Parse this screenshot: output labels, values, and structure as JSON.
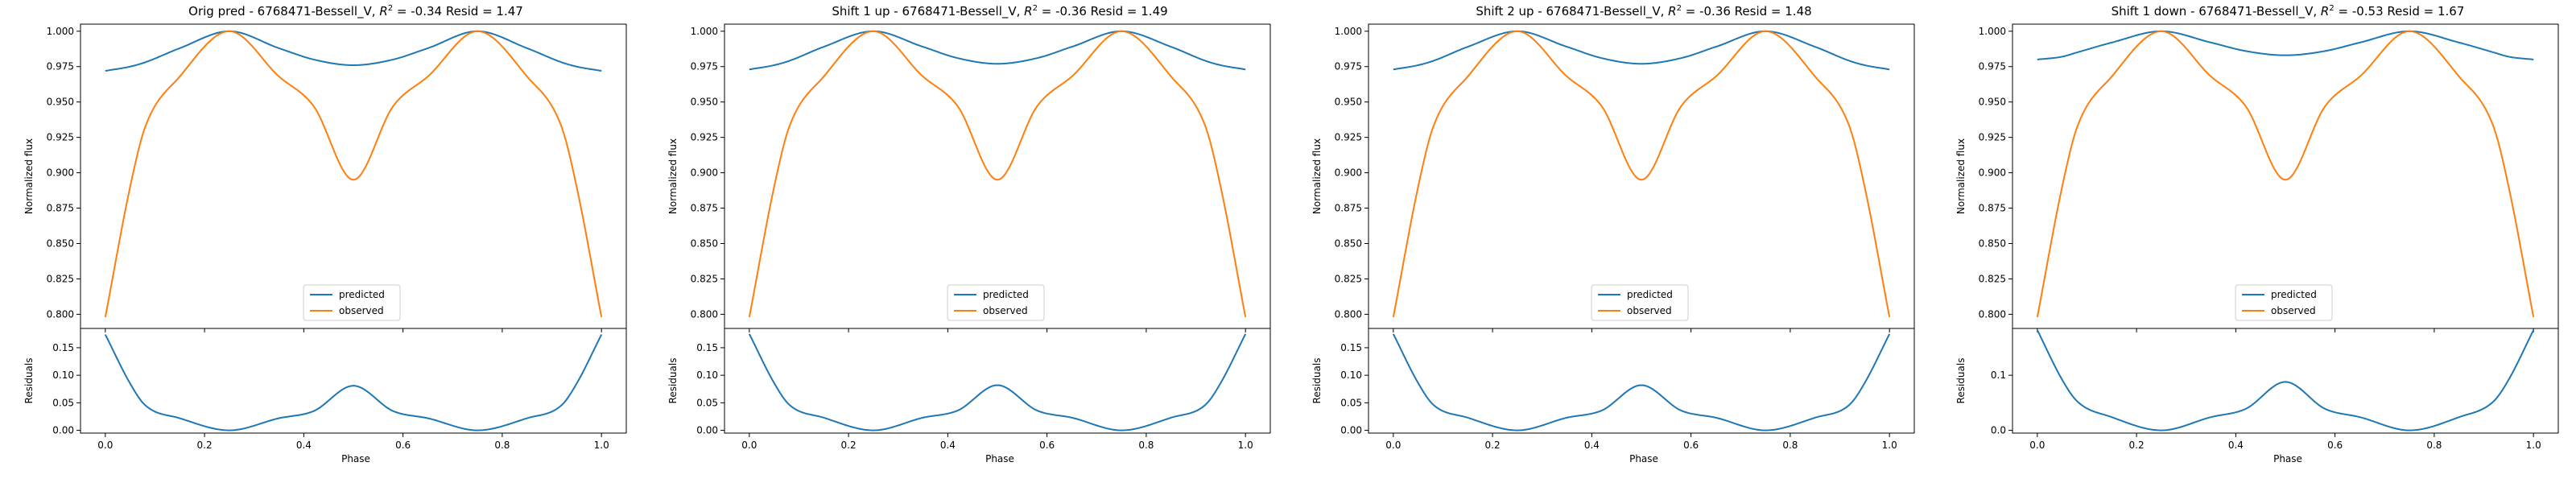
{
  "figure": {
    "panels": [
      {
        "title": "Orig pred - 6768471-Bessell_V, $R^2$ = -0.34 Resid = 1.47",
        "title_prefix": "Orig pred - 6768471-Bessell_V, ",
        "title_r2_label": "R",
        "title_r2_sup": "2",
        "title_r2_value": " = -0.34 Resid = 1.47",
        "ylabel_top": "Normalized flux",
        "ylabel_bottom": "Residuals",
        "xlabel": "Phase",
        "legend": [
          "predicted",
          "observed"
        ]
      },
      {
        "title": "Shift 1 up - 6768471-Bessell_V, $R^2$ = -0.36 Resid = 1.49",
        "title_prefix": "Shift 1 up - 6768471-Bessell_V, ",
        "title_r2_label": "R",
        "title_r2_sup": "2",
        "title_r2_value": " = -0.36 Resid = 1.49",
        "ylabel_top": "Normalized flux",
        "ylabel_bottom": "Residuals",
        "xlabel": "Phase",
        "legend": [
          "predicted",
          "observed"
        ]
      },
      {
        "title": "Shift 2 up - 6768471-Bessell_V, $R^2$ = -0.36 Resid = 1.48",
        "title_prefix": "Shift 2 up - 6768471-Bessell_V, ",
        "title_r2_label": "R",
        "title_r2_sup": "2",
        "title_r2_value": " = -0.36 Resid = 1.48",
        "ylabel_top": "Normalized flux",
        "ylabel_bottom": "Residuals",
        "xlabel": "Phase",
        "legend": [
          "predicted",
          "observed"
        ]
      },
      {
        "title": "Shift 1 down - 6768471-Bessell_V, $R^2$ = -0.53 Resid = 1.67",
        "title_prefix": "Shift 1 down - 6768471-Bessell_V, ",
        "title_r2_label": "R",
        "title_r2_sup": "2",
        "title_r2_value": " = -0.53 Resid = 1.67",
        "ylabel_top": "Normalized flux",
        "ylabel_bottom": "Residuals",
        "xlabel": "Phase",
        "legend": [
          "predicted",
          "observed"
        ]
      }
    ]
  },
  "colors": {
    "predicted": "#1f77b4",
    "observed": "#ff7f0e",
    "axes": "#000000"
  },
  "chart_data": [
    {
      "type": "line",
      "title": "Orig pred - 6768471-Bessell_V, $R^2$ = -0.34 Resid = 1.47",
      "xlabel": "Phase",
      "ylabel": "Normalized flux",
      "xlim": [
        -0.05,
        1.05
      ],
      "ylim": [
        0.79,
        1.005
      ],
      "xticks": [
        0.0,
        0.2,
        0.4,
        0.6,
        0.8,
        1.0
      ],
      "xtick_labels": [
        "0.0",
        "0.2",
        "0.4",
        "0.6",
        "0.8",
        "1.0"
      ],
      "yticks": [
        0.8,
        0.825,
        0.85,
        0.875,
        0.9,
        0.925,
        0.95,
        0.975,
        1.0
      ],
      "ytick_labels": [
        "0.800",
        "0.825",
        "0.850",
        "0.875",
        "0.900",
        "0.925",
        "0.950",
        "0.975",
        "1.000"
      ],
      "legend_position": "lower center",
      "grid": false,
      "x": [
        0.0,
        0.05,
        0.08,
        0.15,
        0.25,
        0.35,
        0.42,
        0.5,
        0.58,
        0.65,
        0.75,
        0.85,
        0.92,
        0.95,
        1.0
      ],
      "series": [
        {
          "name": "predicted",
          "values": [
            0.972,
            0.975,
            0.978,
            0.988,
            1.0,
            0.988,
            0.98,
            0.976,
            0.98,
            0.988,
            1.0,
            0.988,
            0.978,
            0.975,
            0.972
          ]
        },
        {
          "name": "observed",
          "values": [
            0.798,
            0.89,
            0.932,
            0.968,
            1.0,
            0.968,
            0.947,
            0.895,
            0.947,
            0.968,
            1.0,
            0.968,
            0.932,
            0.89,
            0.798
          ]
        }
      ],
      "residuals": {
        "ylabel": "Residuals",
        "ylim": [
          -0.005,
          0.185
        ],
        "yticks": [
          0.0,
          0.05,
          0.1,
          0.15
        ],
        "ytick_labels": [
          "0.00",
          "0.05",
          "0.10",
          "0.15"
        ],
        "values": [
          0.174,
          0.085,
          0.046,
          0.022,
          0.0,
          0.022,
          0.035,
          0.081,
          0.035,
          0.022,
          0.0,
          0.022,
          0.046,
          0.085,
          0.174
        ]
      }
    },
    {
      "type": "line",
      "title": "Shift 1 up - 6768471-Bessell_V, $R^2$ = -0.36 Resid = 1.49",
      "xlabel": "Phase",
      "ylabel": "Normalized flux",
      "xlim": [
        -0.05,
        1.05
      ],
      "ylim": [
        0.79,
        1.005
      ],
      "xticks": [
        0.0,
        0.2,
        0.4,
        0.6,
        0.8,
        1.0
      ],
      "xtick_labels": [
        "0.0",
        "0.2",
        "0.4",
        "0.6",
        "0.8",
        "1.0"
      ],
      "yticks": [
        0.8,
        0.825,
        0.85,
        0.875,
        0.9,
        0.925,
        0.95,
        0.975,
        1.0
      ],
      "ytick_labels": [
        "0.800",
        "0.825",
        "0.850",
        "0.875",
        "0.900",
        "0.925",
        "0.950",
        "0.975",
        "1.000"
      ],
      "legend_position": "lower center",
      "grid": false,
      "x": [
        0.0,
        0.05,
        0.08,
        0.15,
        0.25,
        0.35,
        0.42,
        0.5,
        0.58,
        0.65,
        0.75,
        0.85,
        0.92,
        0.95,
        1.0
      ],
      "series": [
        {
          "name": "predicted",
          "values": [
            0.973,
            0.976,
            0.979,
            0.989,
            1.0,
            0.989,
            0.981,
            0.977,
            0.981,
            0.989,
            1.0,
            0.989,
            0.979,
            0.976,
            0.973
          ]
        },
        {
          "name": "observed",
          "values": [
            0.798,
            0.89,
            0.932,
            0.968,
            1.0,
            0.968,
            0.947,
            0.895,
            0.947,
            0.968,
            1.0,
            0.968,
            0.932,
            0.89,
            0.798
          ]
        }
      ],
      "residuals": {
        "ylabel": "Residuals",
        "ylim": [
          -0.005,
          0.185
        ],
        "yticks": [
          0.0,
          0.05,
          0.1,
          0.15
        ],
        "ytick_labels": [
          "0.00",
          "0.05",
          "0.10",
          "0.15"
        ],
        "values": [
          0.175,
          0.086,
          0.047,
          0.023,
          0.0,
          0.023,
          0.036,
          0.082,
          0.036,
          0.023,
          0.0,
          0.023,
          0.047,
          0.086,
          0.175
        ]
      }
    },
    {
      "type": "line",
      "title": "Shift 2 up - 6768471-Bessell_V, $R^2$ = -0.36 Resid = 1.48",
      "xlabel": "Phase",
      "ylabel": "Normalized flux",
      "xlim": [
        -0.05,
        1.05
      ],
      "ylim": [
        0.79,
        1.005
      ],
      "xticks": [
        0.0,
        0.2,
        0.4,
        0.6,
        0.8,
        1.0
      ],
      "xtick_labels": [
        "0.0",
        "0.2",
        "0.4",
        "0.6",
        "0.8",
        "1.0"
      ],
      "yticks": [
        0.8,
        0.825,
        0.85,
        0.875,
        0.9,
        0.925,
        0.95,
        0.975,
        1.0
      ],
      "ytick_labels": [
        "0.800",
        "0.825",
        "0.850",
        "0.875",
        "0.900",
        "0.925",
        "0.950",
        "0.975",
        "1.000"
      ],
      "legend_position": "lower center",
      "grid": false,
      "x": [
        0.0,
        0.05,
        0.08,
        0.15,
        0.25,
        0.35,
        0.42,
        0.5,
        0.58,
        0.65,
        0.75,
        0.85,
        0.92,
        0.95,
        1.0
      ],
      "series": [
        {
          "name": "predicted",
          "values": [
            0.973,
            0.976,
            0.979,
            0.989,
            1.0,
            0.989,
            0.981,
            0.977,
            0.981,
            0.989,
            1.0,
            0.989,
            0.979,
            0.976,
            0.973
          ]
        },
        {
          "name": "observed",
          "values": [
            0.798,
            0.89,
            0.932,
            0.968,
            1.0,
            0.968,
            0.947,
            0.895,
            0.947,
            0.968,
            1.0,
            0.968,
            0.932,
            0.89,
            0.798
          ]
        }
      ],
      "residuals": {
        "ylabel": "Residuals",
        "ylim": [
          -0.005,
          0.185
        ],
        "yticks": [
          0.0,
          0.05,
          0.1,
          0.15
        ],
        "ytick_labels": [
          "0.00",
          "0.05",
          "0.10",
          "0.15"
        ],
        "values": [
          0.175,
          0.086,
          0.047,
          0.023,
          0.0,
          0.023,
          0.036,
          0.082,
          0.036,
          0.023,
          0.0,
          0.023,
          0.047,
          0.086,
          0.175
        ]
      }
    },
    {
      "type": "line",
      "title": "Shift 1 down - 6768471-Bessell_V, $R^2$ = -0.53 Resid = 1.67",
      "xlabel": "Phase",
      "ylabel": "Normalized flux",
      "xlim": [
        -0.05,
        1.05
      ],
      "ylim": [
        0.79,
        1.005
      ],
      "xticks": [
        0.0,
        0.2,
        0.4,
        0.6,
        0.8,
        1.0
      ],
      "xtick_labels": [
        "0.0",
        "0.2",
        "0.4",
        "0.6",
        "0.8",
        "1.0"
      ],
      "yticks": [
        0.8,
        0.825,
        0.85,
        0.875,
        0.9,
        0.925,
        0.95,
        0.975,
        1.0
      ],
      "ytick_labels": [
        "0.800",
        "0.825",
        "0.850",
        "0.875",
        "0.900",
        "0.925",
        "0.950",
        "0.975",
        "1.000"
      ],
      "legend_position": "lower center",
      "grid": false,
      "x": [
        0.0,
        0.05,
        0.08,
        0.15,
        0.25,
        0.35,
        0.42,
        0.5,
        0.58,
        0.65,
        0.75,
        0.85,
        0.92,
        0.95,
        1.0
      ],
      "series": [
        {
          "name": "predicted",
          "values": [
            0.98,
            0.982,
            0.985,
            0.992,
            1.0,
            0.992,
            0.986,
            0.983,
            0.986,
            0.992,
            1.0,
            0.992,
            0.985,
            0.982,
            0.98
          ]
        },
        {
          "name": "observed",
          "values": [
            0.798,
            0.89,
            0.932,
            0.968,
            1.0,
            0.968,
            0.947,
            0.895,
            0.947,
            0.968,
            1.0,
            0.968,
            0.932,
            0.89,
            0.798
          ]
        }
      ],
      "residuals": {
        "ylabel": "Residuals",
        "ylim": [
          -0.005,
          0.185
        ],
        "yticks": [
          0.0,
          0.1
        ],
        "ytick_labels": [
          "0.0",
          "0.1"
        ],
        "values": [
          0.182,
          0.092,
          0.053,
          0.024,
          0.0,
          0.024,
          0.039,
          0.088,
          0.039,
          0.024,
          0.0,
          0.024,
          0.053,
          0.092,
          0.182
        ]
      }
    }
  ]
}
